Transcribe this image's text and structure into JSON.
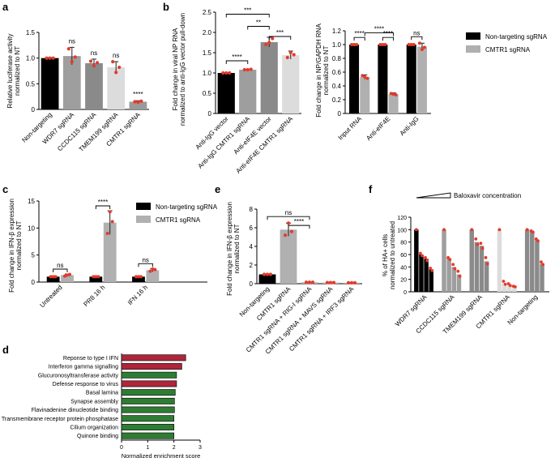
{
  "figure": {
    "panel_letters": [
      "a",
      "b",
      "c",
      "d",
      "e",
      "f"
    ]
  },
  "chart_data": [
    {
      "id": "a",
      "type": "bar",
      "title": "",
      "ylabel": "Relative luciferase activity\nnormalized to NT",
      "ylim": [
        0,
        1.5
      ],
      "yticks": [
        "0",
        "0.5",
        "1.0",
        "1.5"
      ],
      "ytick_values": [
        0,
        0.5,
        1.0,
        1.5
      ],
      "categories": [
        "Non-targeting",
        "WDR7 sgRNA",
        "CCDC115 sgRNA",
        "TMEM199 sgRNA",
        "CMTR1 sgRNA"
      ],
      "values": [
        1.0,
        1.04,
        0.9,
        0.82,
        0.15
      ],
      "errors": [
        0.01,
        0.17,
        0.08,
        0.11,
        0.02
      ],
      "colors": [
        "#000000",
        "#9e9e9e",
        "#8a8a8a",
        "#dcdcdc",
        "#9a9a9a"
      ],
      "points": [
        [
          1.0,
          1.0,
          1.0
        ],
        [
          1.18,
          0.93,
          1.02
        ],
        [
          0.94,
          0.85,
          0.91
        ],
        [
          0.93,
          0.72,
          0.82
        ],
        [
          0.15,
          0.14,
          0.16
        ]
      ],
      "annotations": [
        "",
        "ns",
        "ns",
        "ns",
        "****"
      ]
    },
    {
      "id": "b1",
      "type": "bar",
      "ylabel": "Fold change in viral NP RNA\nnormalized to anti-IgG vector pull-down",
      "ylim": [
        0,
        2.5
      ],
      "yticks": [
        "0",
        "0.5",
        "1.0",
        "1.5",
        "2.0",
        "2.5"
      ],
      "ytick_values": [
        0,
        0.5,
        1.0,
        1.5,
        2.0,
        2.5
      ],
      "categories": [
        "Anti-IgG vector",
        "Anti-IgG CMTR1 sgRNA",
        "Anti-eIF4E vector",
        "Anti-eIF4E CMTR1 sgRNA"
      ],
      "values": [
        1.0,
        1.08,
        1.76,
        1.44
      ],
      "errors": [
        0.01,
        0.01,
        0.12,
        0.1
      ],
      "colors": [
        "#000000",
        "#9e9e9e",
        "#8a8a8a",
        "#dcdcdc"
      ],
      "points": [
        [
          1.0,
          1.0,
          1.0
        ],
        [
          1.08,
          1.08,
          1.09
        ],
        [
          1.7,
          1.75,
          1.85
        ],
        [
          1.38,
          1.5,
          1.45
        ]
      ],
      "brackets": [
        {
          "from": 0,
          "to": 1,
          "y": 1.3,
          "label": "****"
        },
        {
          "from": 0,
          "to": 2,
          "y": 2.45,
          "label": "***"
        },
        {
          "from": 1,
          "to": 2,
          "y": 2.15,
          "label": "**"
        },
        {
          "from": 2,
          "to": 3,
          "y": 1.9,
          "label": "***"
        }
      ]
    },
    {
      "id": "b2",
      "type": "bar",
      "ylabel": "Fold change in NP/GAPDH RNA\nnormalized to NT",
      "ylim": [
        0,
        1.2
      ],
      "yticks": [
        "0",
        "0.2",
        "0.4",
        "0.6",
        "0.8",
        "1.0",
        "1.2"
      ],
      "ytick_values": [
        0,
        0.2,
        0.4,
        0.6,
        0.8,
        1.0,
        1.2
      ],
      "categories": [
        "Input RNA",
        "Anti-eIF4E",
        "Anti-IgG"
      ],
      "series": [
        {
          "name": "Non-targeting sgRNA",
          "color": "#000000",
          "values": [
            1.0,
            1.0,
            1.0
          ],
          "errors": [
            0.01,
            0.01,
            0.01
          ],
          "points": [
            [
              1.0,
              1.0,
              1.0
            ],
            [
              1.0,
              1.0,
              1.0
            ],
            [
              1.0,
              1.0,
              1.0
            ]
          ]
        },
        {
          "name": "CMTR1 sgRNA",
          "color": "#b0b0b0",
          "values": [
            0.53,
            0.28,
            0.97
          ],
          "errors": [
            0.03,
            0.02,
            0.05
          ],
          "points": [
            [
              0.55,
              0.53,
              0.51
            ],
            [
              0.29,
              0.28,
              0.27
            ],
            [
              1.02,
              0.93,
              0.96
            ]
          ]
        }
      ],
      "group_annotations": [
        "****",
        "****",
        "ns"
      ],
      "brackets": [
        {
          "from": 0,
          "to": 1,
          "y": 1.17,
          "label": "****"
        }
      ],
      "legend_position": "right"
    },
    {
      "id": "c",
      "type": "bar",
      "ylabel": "Fold change in IFN-β expression\nnormalized to NT",
      "ylim": [
        0,
        15
      ],
      "yticks": [
        "0",
        "5",
        "10",
        "15"
      ],
      "ytick_values": [
        0,
        5,
        10,
        15
      ],
      "categories": [
        "Untreated",
        "PR8 16 h",
        "IFN 16 h"
      ],
      "series": [
        {
          "name": "Non-targeting sgRNA",
          "color": "#000000",
          "values": [
            1.0,
            1.0,
            1.0
          ],
          "errors": [
            0.1,
            0.1,
            0.1
          ],
          "points": [
            [
              1.0,
              1.0,
              1.0
            ],
            [
              1.0,
              1.0,
              1.0
            ],
            [
              1.0,
              1.0,
              1.0
            ]
          ]
        },
        {
          "name": "CMTR1 sgRNA",
          "color": "#b0b0b0",
          "values": [
            1.3,
            11.0,
            2.2
          ],
          "errors": [
            0.2,
            2.2,
            0.3
          ],
          "points": [
            [
              1.1,
              1.3,
              1.4
            ],
            [
              9.0,
              13.0,
              11.2
            ],
            [
              2.0,
              2.4,
              2.3
            ]
          ]
        }
      ],
      "group_annotations": [
        "ns",
        "****",
        "ns"
      ],
      "legend_position": "top-right"
    },
    {
      "id": "d",
      "type": "bar",
      "orientation": "horizontal",
      "xlabel": "Normalized enrichment score",
      "xlim": [
        0,
        3
      ],
      "xticks": [
        "0",
        "1",
        "2",
        "3"
      ],
      "xtick_values": [
        0,
        1,
        2,
        3
      ],
      "categories": [
        "Reponse to type I IFN",
        "Interferon gamma signalling",
        "Glucuronosyltransferase activity",
        "Defense response to virus",
        "Basal lamina",
        "Synapse assembly",
        "Flavinadenine dinucleotide binding",
        "Transmembrane receptor protein phosphatase",
        "Cilium organization",
        "Quinone binding"
      ],
      "values": [
        2.45,
        2.3,
        2.1,
        2.1,
        2.05,
        2.02,
        2.02,
        2.0,
        2.0,
        2.0
      ],
      "colors": [
        "#b0253a",
        "#b0253a",
        "#2e7d32",
        "#b0253a",
        "#2e7d32",
        "#2e7d32",
        "#2e7d32",
        "#2e7d32",
        "#2e7d32",
        "#2e7d32"
      ]
    },
    {
      "id": "e",
      "type": "bar",
      "ylabel": "Fold change in IFN-β expression\nnormalized to NT",
      "ylim": [
        0,
        8
      ],
      "yticks": [
        "0",
        "2",
        "4",
        "6",
        "8"
      ],
      "ytick_values": [
        0,
        2,
        4,
        6,
        8
      ],
      "categories": [
        "Non-targeting",
        "CMTR1 sgRNA",
        "CMTR1 sgRNA + RIG-I sgRNA",
        "CMTR1 sgRNA + MAVS sgRNA",
        "CMTR1 sgRNA + IRF3 sgRNA"
      ],
      "values": [
        1.0,
        5.8,
        0.15,
        0.12,
        0.1
      ],
      "errors": [
        0.05,
        0.7,
        0.03,
        0.02,
        0.02
      ],
      "colors": [
        "#000000",
        "#b0b0b0",
        "#b0b0b0",
        "#b0b0b0",
        "#b0b0b0"
      ],
      "points": [
        [
          1.0,
          1.0,
          1.0
        ],
        [
          5.2,
          6.5,
          5.6
        ],
        [
          0.15,
          0.15,
          0.15
        ],
        [
          0.12,
          0.12,
          0.12
        ],
        [
          0.1,
          0.1,
          0.1
        ]
      ],
      "brackets": [
        {
          "from": 0,
          "to": 2,
          "y": 7.2,
          "label": "ns"
        },
        {
          "from": 1,
          "to": 2,
          "y": 6.25,
          "label": "****"
        }
      ]
    },
    {
      "id": "f",
      "type": "bar",
      "ylabel": "% of HA+ cells\nnormalized to untreated",
      "ylim": [
        0,
        120
      ],
      "yticks": [
        "0",
        "20",
        "40",
        "60",
        "80",
        "100",
        "120"
      ],
      "ytick_values": [
        0,
        20,
        40,
        60,
        80,
        100,
        120
      ],
      "annotation": "Baloxavir concentration",
      "categories": [
        "WDR7 sgRNA",
        "CCDC115 sgRNA",
        "TMEM199 sgRNA",
        "CMTR1 sgRNA",
        "Non-targeting"
      ],
      "group_colors": [
        "#000000",
        "#9e9e9e",
        "#8a8a8a",
        "#dcdcdc",
        "#8a8a8a"
      ],
      "groups": [
        [
          100,
          60,
          53,
          36
        ],
        [
          100,
          54,
          40,
          28
        ],
        [
          100,
          80,
          74,
          49
        ],
        [
          100,
          14,
          12,
          8
        ],
        [
          100,
          97,
          83,
          45
        ]
      ],
      "points": [
        [
          [
            100
          ],
          [
            62,
            58
          ],
          [
            55,
            50
          ],
          [
            38,
            34
          ]
        ],
        [
          [
            100
          ],
          [
            55,
            52
          ],
          [
            44,
            37
          ],
          [
            33,
            25
          ]
        ],
        [
          [
            100
          ],
          [
            85,
            76
          ],
          [
            78,
            70
          ],
          [
            55,
            45
          ]
        ],
        [
          [
            100
          ],
          [
            17,
            12
          ],
          [
            13,
            10
          ],
          [
            9,
            8
          ]
        ],
        [
          [
            100
          ],
          [
            98,
            96
          ],
          [
            85,
            82
          ],
          [
            48,
            44
          ]
        ]
      ]
    }
  ]
}
